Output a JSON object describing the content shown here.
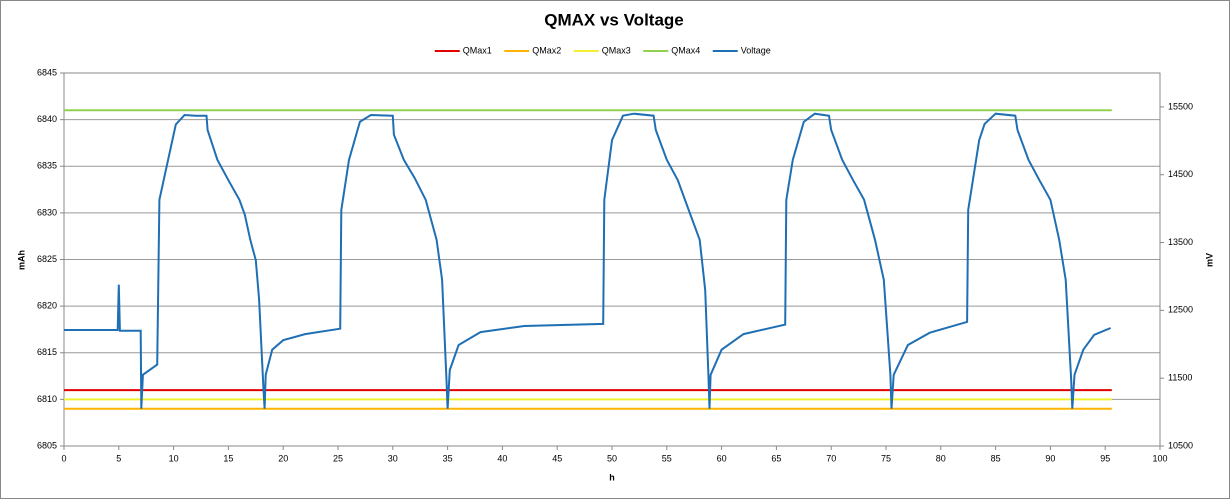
{
  "chart_data": {
    "type": "line",
    "title": "QMAX vs Voltage",
    "xlabel": "h",
    "ylabel": "mAh",
    "y2label": "mV",
    "xlim": [
      0,
      100
    ],
    "xticks": [
      0,
      5,
      10,
      15,
      20,
      25,
      30,
      35,
      40,
      45,
      50,
      55,
      60,
      65,
      70,
      75,
      80,
      85,
      90,
      95,
      100
    ],
    "ylim": [
      6805,
      6845
    ],
    "yticks": [
      6805,
      6810,
      6815,
      6820,
      6825,
      6830,
      6835,
      6840,
      6845
    ],
    "y2lim": [
      10500,
      16000
    ],
    "y2ticks": [
      10500,
      11500,
      12500,
      13500,
      14500,
      15500
    ],
    "grid": true,
    "legend": "top",
    "series": [
      {
        "name": "QMax1",
        "color": "#e00000",
        "x": [
          0,
          95.6
        ],
        "values": [
          6811,
          6811
        ]
      },
      {
        "name": "QMax2",
        "color": "#ffb300",
        "x": [
          0,
          95.6
        ],
        "values": [
          6809,
          6809
        ]
      },
      {
        "name": "QMax3",
        "color": "#f0f030",
        "x": [
          0,
          95.6
        ],
        "values": [
          6810,
          6810
        ]
      },
      {
        "name": "QMax4",
        "color": "#92d050",
        "x": [
          0,
          95.6
        ],
        "values": [
          6841,
          6841
        ]
      },
      {
        "name": "Voltage",
        "color": "#1f6fb4",
        "axis": "y2",
        "x": [
          0,
          4.9,
          5,
          5.1,
          7,
          7.05,
          7.2,
          8.5,
          8.7,
          9.5,
          10.2,
          11,
          12,
          13,
          13.1,
          14,
          15,
          16,
          16.5,
          17,
          17.5,
          17.8,
          18.2,
          18.3,
          18.4,
          19,
          20,
          22,
          25.2,
          25.3,
          26,
          27,
          28,
          30,
          30.1,
          31,
          32,
          33,
          34,
          34.5,
          34.9,
          35,
          35.2,
          36,
          38,
          42,
          49.2,
          49.3,
          50,
          51,
          52,
          53.8,
          54,
          55,
          56,
          57,
          58,
          58.5,
          58.8,
          58.9,
          59,
          60,
          62,
          65.8,
          65.9,
          66.5,
          67.5,
          68.5,
          69.8,
          70,
          71,
          72,
          73,
          74,
          74.8,
          75.4,
          75.5,
          75.7,
          77,
          79,
          82.4,
          82.5,
          83.5,
          84,
          85,
          86.8,
          87,
          88,
          89,
          90,
          90.8,
          91.4,
          91.9,
          92,
          92.2,
          93,
          94,
          95.5
        ],
        "values": [
          12210,
          12210,
          12880,
          12200,
          12200,
          11050,
          11550,
          11700,
          14130,
          14720,
          15240,
          15380,
          15370,
          15370,
          15160,
          14720,
          14420,
          14130,
          13910,
          13540,
          13240,
          12660,
          11330,
          11050,
          11550,
          11920,
          12060,
          12150,
          12230,
          13980,
          14720,
          15280,
          15380,
          15370,
          15090,
          14720,
          14450,
          14130,
          13540,
          12950,
          11470,
          11050,
          11620,
          11990,
          12180,
          12270,
          12300,
          14130,
          15010,
          15370,
          15400,
          15370,
          15160,
          14720,
          14420,
          13980,
          13540,
          12800,
          11550,
          11050,
          11550,
          11920,
          12150,
          12290,
          14130,
          14720,
          15280,
          15400,
          15370,
          15160,
          14720,
          14420,
          14130,
          13540,
          12950,
          11550,
          11050,
          11550,
          11990,
          12170,
          12330,
          13980,
          15010,
          15250,
          15400,
          15370,
          15160,
          14720,
          14420,
          14130,
          13540,
          12950,
          11470,
          11050,
          11550,
          11920,
          12140,
          12240
        ]
      }
    ]
  }
}
